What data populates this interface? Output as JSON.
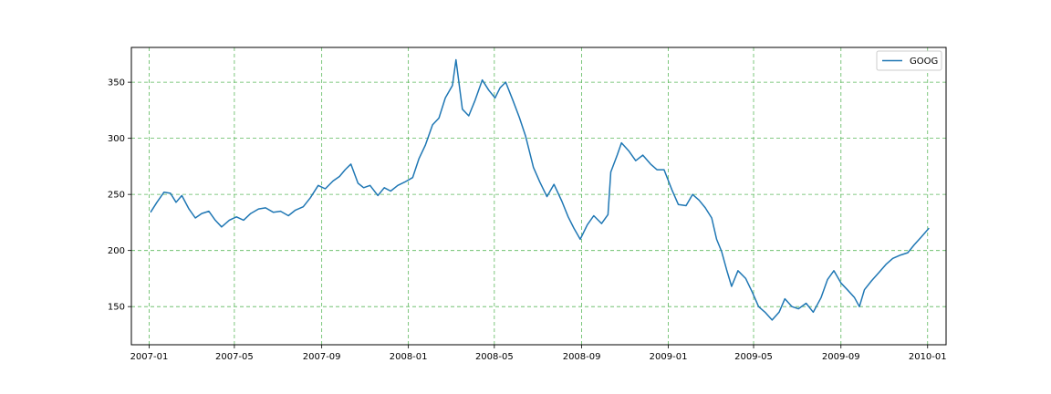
{
  "chart_data": {
    "type": "line",
    "title": "",
    "xlabel": "",
    "ylabel": "",
    "grid": true,
    "legend_position": "top-right",
    "x_ticks": [
      "2007-01",
      "2007-05",
      "2007-09",
      "2008-01",
      "2008-05",
      "2008-09",
      "2009-01",
      "2009-05",
      "2009-09",
      "2010-01"
    ],
    "y_ticks": [
      150,
      200,
      250,
      300,
      350
    ],
    "xlim": [
      "2006-12-07",
      "2010-01-27"
    ],
    "ylim": [
      116,
      381
    ],
    "series": [
      {
        "name": "GOOG",
        "color": "#1f77b4",
        "points": [
          [
            "2007-01-03",
            234
          ],
          [
            "2007-01-12",
            243
          ],
          [
            "2007-01-22",
            252
          ],
          [
            "2007-01-31",
            251
          ],
          [
            "2007-02-08",
            243
          ],
          [
            "2007-02-16",
            249
          ],
          [
            "2007-02-26",
            237
          ],
          [
            "2007-03-07",
            229
          ],
          [
            "2007-03-16",
            233
          ],
          [
            "2007-03-26",
            235
          ],
          [
            "2007-04-04",
            227
          ],
          [
            "2007-04-13",
            221
          ],
          [
            "2007-04-24",
            227
          ],
          [
            "2007-05-04",
            230
          ],
          [
            "2007-05-14",
            227
          ],
          [
            "2007-05-24",
            233
          ],
          [
            "2007-06-04",
            237
          ],
          [
            "2007-06-14",
            238
          ],
          [
            "2007-06-25",
            234
          ],
          [
            "2007-07-05",
            235
          ],
          [
            "2007-07-16",
            231
          ],
          [
            "2007-07-26",
            236
          ],
          [
            "2007-08-06",
            239
          ],
          [
            "2007-08-16",
            247
          ],
          [
            "2007-08-27",
            258
          ],
          [
            "2007-09-06",
            255
          ],
          [
            "2007-09-17",
            262
          ],
          [
            "2007-09-26",
            266
          ],
          [
            "2007-10-04",
            272
          ],
          [
            "2007-10-12",
            277
          ],
          [
            "2007-10-22",
            260
          ],
          [
            "2007-10-30",
            256
          ],
          [
            "2007-11-08",
            258
          ],
          [
            "2007-11-19",
            249
          ],
          [
            "2007-11-28",
            256
          ],
          [
            "2007-12-07",
            253
          ],
          [
            "2007-12-17",
            258
          ],
          [
            "2007-12-27",
            261
          ],
          [
            "2008-01-07",
            265
          ],
          [
            "2008-01-16",
            282
          ],
          [
            "2008-01-25",
            294
          ],
          [
            "2008-02-04",
            312
          ],
          [
            "2008-02-13",
            318
          ],
          [
            "2008-02-22",
            336
          ],
          [
            "2008-03-03",
            347
          ],
          [
            "2008-03-08",
            370
          ],
          [
            "2008-03-17",
            326
          ],
          [
            "2008-03-26",
            320
          ],
          [
            "2008-04-04",
            334
          ],
          [
            "2008-04-14",
            352
          ],
          [
            "2008-04-23",
            343
          ],
          [
            "2008-05-02",
            336
          ],
          [
            "2008-05-09",
            345
          ],
          [
            "2008-05-17",
            350
          ],
          [
            "2008-05-27",
            334
          ],
          [
            "2008-06-05",
            319
          ],
          [
            "2008-06-14",
            302
          ],
          [
            "2008-06-25",
            274
          ],
          [
            "2008-07-04",
            261
          ],
          [
            "2008-07-14",
            248
          ],
          [
            "2008-07-24",
            259
          ],
          [
            "2008-08-04",
            244
          ],
          [
            "2008-08-13",
            230
          ],
          [
            "2008-08-21",
            220
          ],
          [
            "2008-08-30",
            210
          ],
          [
            "2008-09-09",
            223
          ],
          [
            "2008-09-18",
            231
          ],
          [
            "2008-09-29",
            224
          ],
          [
            "2008-10-08",
            232
          ],
          [
            "2008-10-12",
            270
          ],
          [
            "2008-10-21",
            285
          ],
          [
            "2008-10-27",
            296
          ],
          [
            "2008-11-06",
            289
          ],
          [
            "2008-11-16",
            280
          ],
          [
            "2008-11-26",
            285
          ],
          [
            "2008-12-07",
            277
          ],
          [
            "2008-12-16",
            272
          ],
          [
            "2008-12-26",
            272
          ],
          [
            "2009-01-06",
            254
          ],
          [
            "2009-01-15",
            241
          ],
          [
            "2009-01-26",
            240
          ],
          [
            "2009-02-04",
            250
          ],
          [
            "2009-02-13",
            245
          ],
          [
            "2009-02-22",
            238
          ],
          [
            "2009-03-03",
            229
          ],
          [
            "2009-03-10",
            210
          ],
          [
            "2009-03-17",
            199
          ],
          [
            "2009-03-24",
            183
          ],
          [
            "2009-03-31",
            168
          ],
          [
            "2009-04-09",
            182
          ],
          [
            "2009-04-20",
            175
          ],
          [
            "2009-04-29",
            163
          ],
          [
            "2009-05-08",
            150
          ],
          [
            "2009-05-17",
            145
          ],
          [
            "2009-05-27",
            138
          ],
          [
            "2009-06-06",
            145
          ],
          [
            "2009-06-14",
            157
          ],
          [
            "2009-06-24",
            150
          ],
          [
            "2009-07-03",
            148
          ],
          [
            "2009-07-14",
            153
          ],
          [
            "2009-07-24",
            145
          ],
          [
            "2009-08-04",
            158
          ],
          [
            "2009-08-13",
            174
          ],
          [
            "2009-08-22",
            182
          ],
          [
            "2009-09-01",
            171
          ],
          [
            "2009-09-10",
            165
          ],
          [
            "2009-09-20",
            158
          ],
          [
            "2009-09-27",
            150
          ],
          [
            "2009-10-04",
            165
          ],
          [
            "2009-10-14",
            173
          ],
          [
            "2009-10-24",
            180
          ],
          [
            "2009-11-04",
            188
          ],
          [
            "2009-11-13",
            193
          ],
          [
            "2009-11-24",
            196
          ],
          [
            "2009-12-04",
            198
          ],
          [
            "2009-12-13",
            205
          ],
          [
            "2009-12-23",
            212
          ],
          [
            "2010-01-03",
            220
          ]
        ]
      }
    ]
  }
}
